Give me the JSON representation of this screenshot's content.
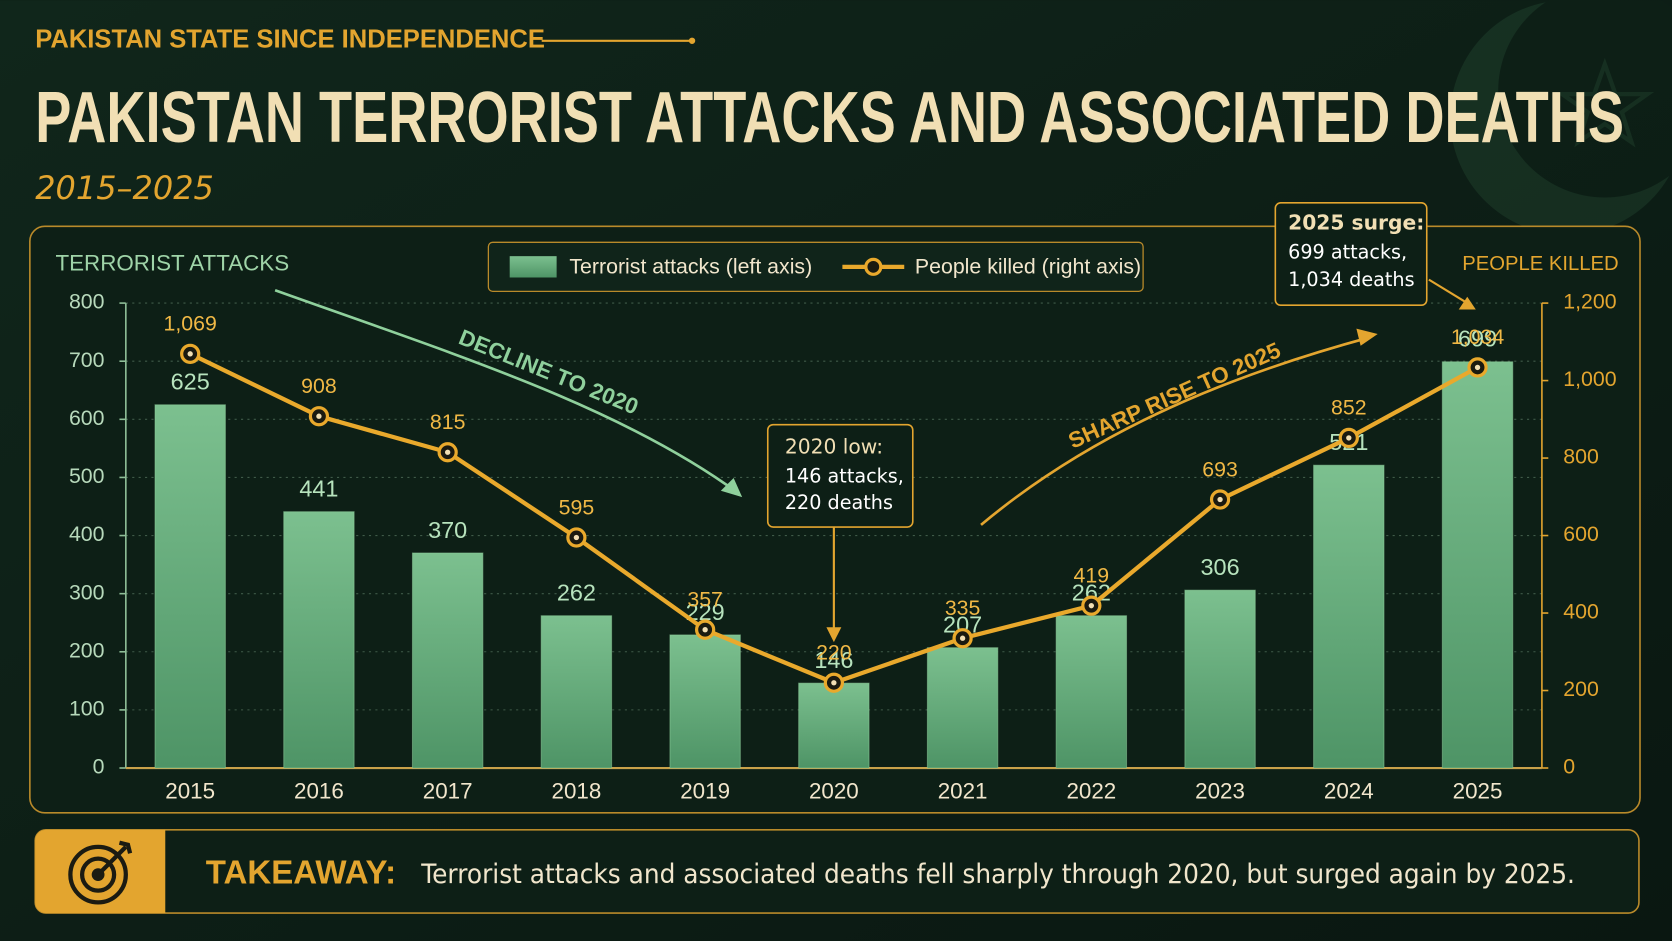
{
  "header": {
    "kicker": "PAKISTAN STATE SINCE INDEPENDENCE",
    "title": "PAKISTAN TERRORIST ATTACKS AND ASSOCIATED DEATHS",
    "subtitle": "2015–2025"
  },
  "chart_data": {
    "type": "combo",
    "y_label": "TERRORIST ATTACKS",
    "y2_label": "PEOPLE KILLED",
    "categories": [
      "2015",
      "2016",
      "2017",
      "2018",
      "2019",
      "2020",
      "2021",
      "2022",
      "2023",
      "2024",
      "2025"
    ],
    "series": [
      {
        "name": "Terrorist attacks (left axis)",
        "type": "bar",
        "color": "#5fa777",
        "values": [
          625,
          441,
          370,
          262,
          229,
          146,
          207,
          262,
          306,
          521,
          699
        ]
      },
      {
        "name": "People killed (right axis)",
        "type": "line",
        "axis": "y2",
        "color": "#e9a92c",
        "values": [
          1069,
          908,
          815,
          595,
          357,
          220,
          335,
          419,
          693,
          852,
          1034
        ],
        "value_labels": [
          "1,069",
          "908",
          "815",
          "595",
          "357",
          "220",
          "335",
          "419",
          "693",
          "852",
          "1,034"
        ]
      }
    ],
    "ylim": [
      0,
      800
    ],
    "yticks": [
      0,
      100,
      200,
      300,
      400,
      500,
      600,
      700,
      800
    ],
    "y2lim": [
      0,
      1200
    ],
    "y2ticks": [
      0,
      200,
      400,
      600,
      800,
      {
        "value": 1000,
        "label": "1,000"
      },
      {
        "value": 1200,
        "label": "1,200"
      }
    ],
    "grid": true,
    "legend": "top",
    "annotations": {
      "decline": "DECLINE TO 2020",
      "rise": "SHARP RISE TO 2025",
      "low": {
        "title": "2020 low:",
        "lines": [
          "146 attacks,",
          "220 deaths"
        ]
      },
      "surge": {
        "title": "2025 surge:",
        "lines": [
          "699 attacks,",
          "1,034 deaths"
        ]
      }
    }
  },
  "takeaway": {
    "label": "TAKEAWAY:",
    "text": "Terrorist attacks and associated deaths fell sharply through 2020, but surged again by 2025."
  }
}
